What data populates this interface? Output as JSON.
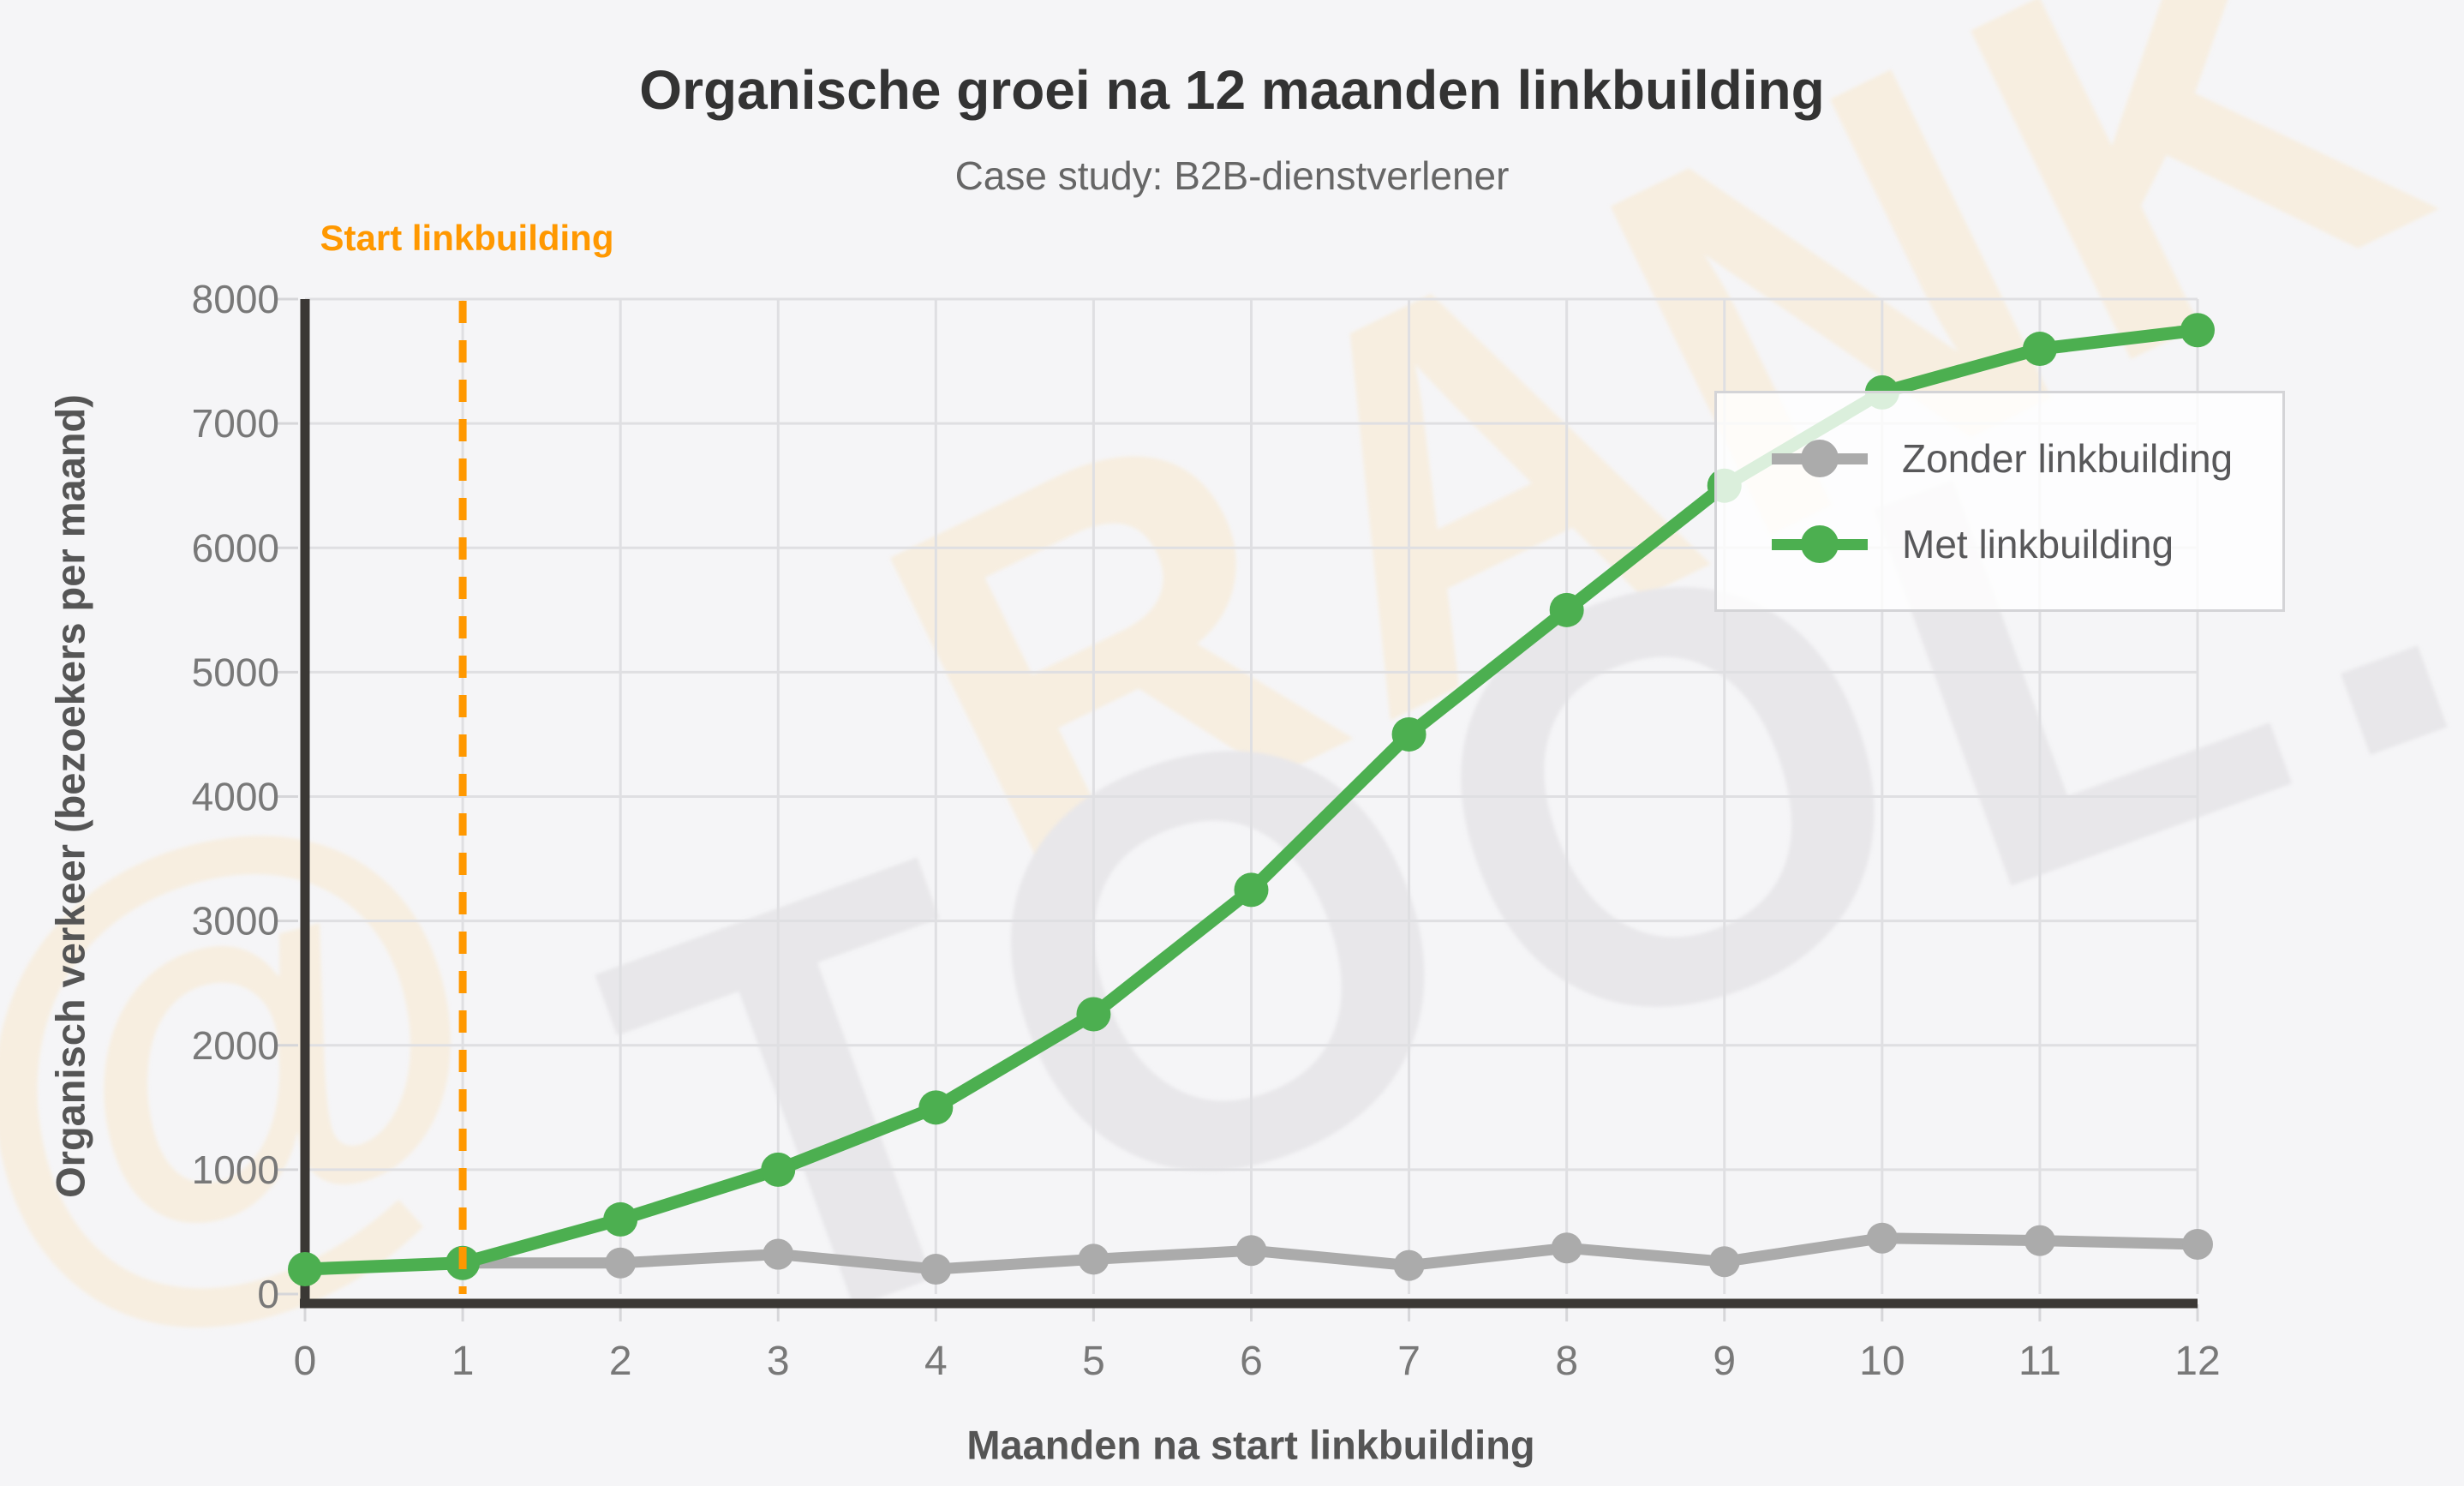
{
  "title": "Organische groei na 12 maanden linkbuilding",
  "subtitle": "Case study: B2B-dienstverlener",
  "watermark": {
    "word1": "RANK",
    "word2": "TOOL.",
    "symbol": "@"
  },
  "legend": [
    {
      "label": "Zonder linkbuilding",
      "color": "#ABABAB"
    },
    {
      "label": "Met linkbuilding",
      "color": "#4CAF50"
    }
  ],
  "chart_data": {
    "type": "line",
    "title": "Organische groei na 12 maanden linkbuilding",
    "subtitle": "Case study: B2B-dienstverlener",
    "xlabel": "Maanden na start linkbuilding",
    "ylabel": "Organisch verkeer (bezoekers per maand)",
    "x": [
      0,
      1,
      2,
      3,
      4,
      5,
      6,
      7,
      8,
      9,
      10,
      11,
      12
    ],
    "x_ticks": [
      0,
      1,
      2,
      3,
      4,
      5,
      6,
      7,
      8,
      9,
      10,
      11,
      12
    ],
    "y_ticks": [
      0,
      1000,
      2000,
      3000,
      4000,
      5000,
      6000,
      7000,
      8000
    ],
    "ylim": [
      0,
      8000
    ],
    "grid": true,
    "legend_position": "top-right",
    "series": [
      {
        "name": "Zonder linkbuilding",
        "color": "#ABABAB",
        "values": [
          200,
          250,
          250,
          320,
          200,
          280,
          350,
          230,
          370,
          260,
          450,
          430,
          400
        ]
      },
      {
        "name": "Met linkbuilding",
        "color": "#4CAF50",
        "values": [
          200,
          250,
          600,
          1000,
          1500,
          2250,
          3250,
          4500,
          5500,
          6500,
          7250,
          7600,
          7750
        ]
      }
    ],
    "vline": {
      "x": 1,
      "label": "Start linkbuilding",
      "color": "#FF9800",
      "style": "dashed"
    },
    "style": {
      "grid_color": "#dfdfe2",
      "tick_color": "#d6d6d9",
      "axis_color": "#3b3835",
      "tick_label_color": "#787878"
    }
  }
}
